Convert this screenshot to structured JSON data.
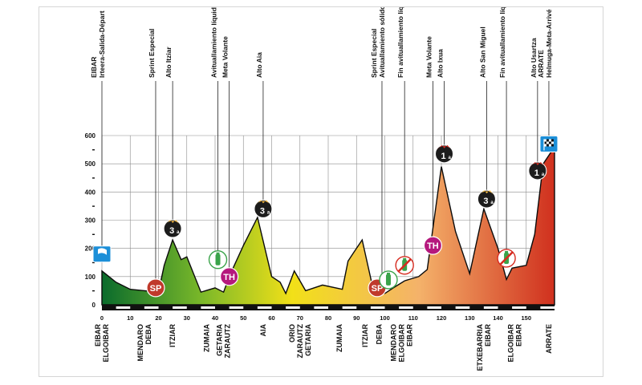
{
  "chart_data": {
    "type": "area",
    "title": "",
    "xlabel": "",
    "ylabel": "",
    "xlim": [
      0,
      160
    ],
    "ylim": [
      0,
      600
    ],
    "y_ticks": [
      0,
      100,
      200,
      300,
      400,
      500,
      600
    ],
    "x_ticks": [
      0,
      10,
      20,
      30,
      40,
      50,
      60,
      70,
      80,
      90,
      100,
      110,
      120,
      130,
      140,
      150
    ],
    "grid": true,
    "profile": {
      "x": [
        0,
        5,
        10,
        15,
        20,
        22,
        25,
        28,
        30,
        35,
        40,
        43,
        45,
        50,
        55,
        60,
        63,
        65,
        68,
        72,
        78,
        85,
        87,
        89,
        92,
        96,
        100,
        103,
        107,
        112,
        115,
        120,
        125,
        130,
        135,
        140,
        143,
        145,
        150,
        153,
        156,
        160
      ],
      "y": [
        120,
        80,
        55,
        50,
        45,
        140,
        230,
        160,
        170,
        45,
        60,
        45,
        100,
        210,
        310,
        100,
        80,
        40,
        120,
        50,
        70,
        55,
        155,
        185,
        230,
        50,
        40,
        60,
        85,
        100,
        125,
        490,
        260,
        110,
        340,
        200,
        90,
        130,
        140,
        250,
        500,
        560
      ]
    },
    "points": [
      {
        "km": 0,
        "alt": 180,
        "markers": [
          "start"
        ],
        "labels": [
          "EIBAR",
          "Irteera-Salida-Départ"
        ]
      },
      {
        "km": 19,
        "alt": 60,
        "markers": [
          "SP"
        ],
        "labels": [
          "Sprint Especial"
        ]
      },
      {
        "km": 25,
        "alt": 270,
        "markers": [
          "cat3"
        ],
        "labels": [
          "Alto Itziar"
        ]
      },
      {
        "km": 41,
        "alt": 160,
        "markers": [
          "feed"
        ],
        "labels": [
          "Avituallamiento líquido"
        ]
      },
      {
        "km": 45,
        "alt": 100,
        "markers": [
          "TH"
        ],
        "labels": [
          "Meta Volante"
        ]
      },
      {
        "km": 57,
        "alt": 340,
        "markers": [
          "cat3"
        ],
        "labels": [
          "Alto Aia"
        ]
      },
      {
        "km": 99,
        "alt": 60,
        "markers": [
          "SP",
          "feed"
        ],
        "labels": [
          "Sprint Especial",
          "Avituallamiento sólido"
        ]
      },
      {
        "km": 107,
        "alt": 140,
        "markers": [
          "feed-end"
        ],
        "labels": [
          "Fin avituallamiento líquido"
        ]
      },
      {
        "km": 117,
        "alt": 210,
        "markers": [
          "TH"
        ],
        "labels": [
          "Meta Volante"
        ]
      },
      {
        "km": 121,
        "alt": 535,
        "markers": [
          "cat1"
        ],
        "labels": [
          "Alto Ixua"
        ]
      },
      {
        "km": 136,
        "alt": 375,
        "markers": [
          "cat3"
        ],
        "labels": [
          "Alto San Miguel"
        ]
      },
      {
        "km": 143,
        "alt": 165,
        "markers": [
          "feed-end"
        ],
        "labels": [
          "Fin avituallamiento líquido"
        ]
      },
      {
        "km": 154,
        "alt": 475,
        "markers": [
          "cat1"
        ],
        "labels": [
          "Alto Usartza"
        ]
      },
      {
        "km": 158,
        "alt": 570,
        "markers": [
          "finish"
        ],
        "labels": [
          "ARRATE",
          "Helmuga-Meta-Arrivé"
        ]
      }
    ],
    "towns": [
      {
        "km": 0,
        "names": [
          "EIBAR",
          "ELGOIBAR"
        ]
      },
      {
        "km": 15,
        "names": [
          "MENDARO",
          "DEBA"
        ]
      },
      {
        "km": 25,
        "names": [
          "ITZIAR"
        ]
      },
      {
        "km": 37,
        "names": [
          "ZUMAIA"
        ]
      },
      {
        "km": 43,
        "names": [
          "GETARIA",
          "ZARAUTZ"
        ]
      },
      {
        "km": 57,
        "names": [
          "AIA"
        ]
      },
      {
        "km": 70,
        "names": [
          "ORIO",
          "ZARAUTZ",
          "GETARIA"
        ]
      },
      {
        "km": 84,
        "names": [
          "ZUMAIA"
        ]
      },
      {
        "km": 93,
        "names": [
          "ITZIAR"
        ]
      },
      {
        "km": 98,
        "names": [
          "DEBA"
        ]
      },
      {
        "km": 106,
        "names": [
          "MENDARO",
          "ELGOIBAR",
          "EIBAR"
        ]
      },
      {
        "km": 135,
        "names": [
          "ETXEBARRIA",
          "EIBAR"
        ]
      },
      {
        "km": 146,
        "names": [
          "ELGOIBAR",
          "EIBAR"
        ]
      },
      {
        "km": 158,
        "names": [
          "ARRATE"
        ]
      }
    ]
  },
  "badges": {
    "SP": "SP",
    "TH": "TH",
    "cat3": "3",
    "cat1": "1",
    "suffix": "a"
  },
  "colors": {
    "grid": "#8c8c8c",
    "profile_start": "#0a6b2c",
    "profile_mid1": "#7ab829",
    "profile_mid2": "#f2e018",
    "profile_mid3": "#f4b26a",
    "profile_end": "#d0301e",
    "sp_badge": "#c0392b",
    "th_badge": "#b5187d",
    "cat_badge_top": "#f5b942",
    "cat_badge": "#1c1c1c",
    "flag_box": "#1c8fd8",
    "feed_green": "#3aa34a",
    "no_feed_red": "#d62b20"
  }
}
